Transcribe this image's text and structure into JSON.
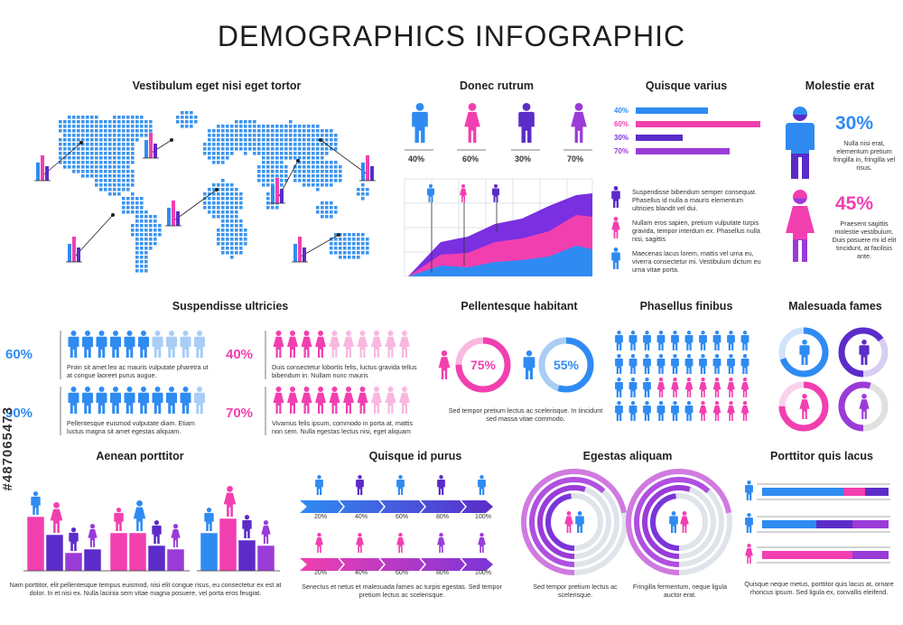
{
  "title": "DEMOGRAPHICS INFOGRAPHIC",
  "watermark_id": "#487065473",
  "colors": {
    "blue": "#2f8bf2",
    "pink": "#f23fb0",
    "purple": "#5b2cc9",
    "violet": "#9a3bd8",
    "light_blue": "#a9cdf5",
    "light_pink": "#f8b8e0"
  },
  "map": {
    "title": "Vestibulum eget nisi eget tortor"
  },
  "donec": {
    "title": "Donec rutrum",
    "figures": [
      {
        "icon": "man-icon",
        "color": "#2f8bf2",
        "label": "40%"
      },
      {
        "icon": "woman-icon",
        "color": "#f23fb0",
        "label": "60%"
      },
      {
        "icon": "man-icon",
        "color": "#5b2cc9",
        "label": "30%"
      },
      {
        "icon": "woman-icon",
        "color": "#9a3bd8",
        "label": "70%"
      }
    ]
  },
  "quisque_varius": {
    "title": "Quisque varius",
    "bars": [
      {
        "label": "40%",
        "value": 40,
        "color": "#2f8bf2"
      },
      {
        "label": "60%",
        "value": 60,
        "color": "#f23fb0"
      },
      {
        "label": "30%",
        "value": 30,
        "color": "#5b2cc9"
      },
      {
        "label": "70%",
        "value": 70,
        "color": "#9a3bd8"
      }
    ],
    "notes": [
      "Suspendisse bibendum semper consequat. Phasellus id nulla a mauris elementum ultricies blandit vel dui.",
      "Nullam eros sapien, pretium vulputate turpis gravida, tempor interdum ex. Phasellus nulla nisi, sagittis",
      "Maecenas lacus lorem, mattis vel urna eu, viverra consectetur mi. Vestibulum dictum eu urna vitae porta."
    ]
  },
  "molestie": {
    "title": "Molestie erat",
    "items": [
      {
        "value": "30%",
        "text": "Nulla nisi erat, elementum pretium fringilla in, fringilla vel risus."
      },
      {
        "value": "45%",
        "text": "Praesent sagittis molestie vestibulum. Duis posuere mi id elit tincidunt, at facilisis ante."
      }
    ]
  },
  "suspendisse": {
    "title": "Suspendisse ultricies",
    "rows": [
      {
        "value": "60%",
        "text": "Proin sit amet leo ac mauris vulputate pharetra ut at congue laoreet purus augue.",
        "filled": 6,
        "total": 10
      },
      {
        "value": "40%",
        "text": "Duis consectetur lobortis felis, luctus gravida tellus bibendum in. Nullam nunc mauris",
        "filled": 4,
        "total": 10
      },
      {
        "value": "90%",
        "text": "Pellentesque euismod vulputate diam. Etiam luctus magna sit amet egestas aliquam.",
        "filled": 9,
        "total": 10
      },
      {
        "value": "70%",
        "text": "Vivamus felis ipsum, commodo in porta at, mattis non sem. Nulla egestas lectus nisi, eget aliquam",
        "filled": 7,
        "total": 10
      }
    ]
  },
  "pellentesque": {
    "title": "Pellentesque habitant",
    "donuts": [
      {
        "value": 75,
        "label": "75%"
      },
      {
        "value": 55,
        "label": "55%"
      }
    ],
    "text": "Sed tempor pretium lectus ac scelerisque. In tincidunt sed massa vitae commodo."
  },
  "phasellus": {
    "title": "Phasellus finibus"
  },
  "malesuada": {
    "title": "Malesuada fames"
  },
  "aenean": {
    "title": "Aenean porttitor",
    "text": "Nam porttitor, elit pellentesque tempus euismod, nisi elit congue risus, eu consectetur ex est at dolor. In et nisi ex. Nulla lacinia sem vitae magna posuere, vel porta eros feugiat."
  },
  "quisque_id": {
    "title": "Quisque id purus",
    "ticks": [
      "20%",
      "40%",
      "60%",
      "80%",
      "100%"
    ],
    "text": "Senectus et netus et malesuada fames ac turpis egestas. Sed tempor pretium lectus ac scelerisque."
  },
  "egestas": {
    "title": "Egestas aliquam",
    "texts": [
      "Sed tempor pretium lectus ac scelerisque.",
      "Fringilla fermentum, neque ligula auctor erat."
    ]
  },
  "porttitor_quis": {
    "title": "Porttitor quis lacus",
    "text": "Quisque neque metus, porttitor quis lacus at, ornare rhoncus ipsum. Sed ligula ex, convallis eleifend."
  }
}
